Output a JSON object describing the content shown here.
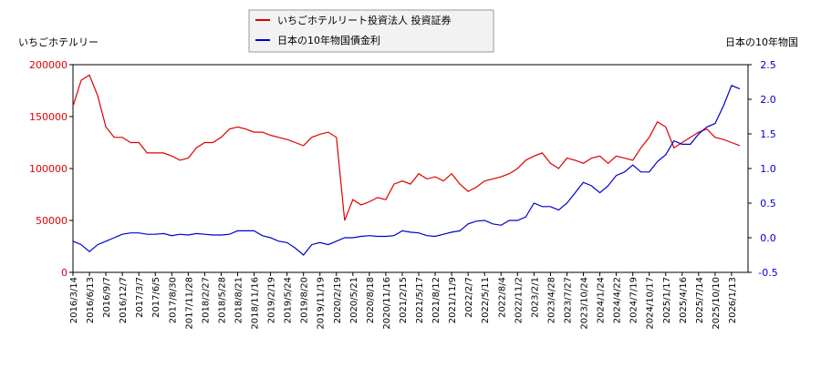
{
  "chart_data": {
    "type": "line",
    "y_label": "いちごホテルリー",
    "y2_label": "日本の10年物国",
    "categories": [
      "2016/3/14",
      null,
      "2016/6/13",
      null,
      "2016/9/7",
      null,
      "2016/12/7",
      null,
      "2017/3/7",
      null,
      "2017/6/5",
      null,
      "2017/8/30",
      null,
      "2017/11/28",
      null,
      "2018/2/27",
      null,
      "2018/5/28",
      null,
      "2018/8/21",
      null,
      "2018/11/16",
      null,
      "2019/2/19",
      null,
      "2019/5/24",
      null,
      "2019/8/20",
      null,
      "2019/11/19",
      null,
      "2020/2/19",
      null,
      "2020/5/21",
      null,
      "2020/8/18",
      null,
      "2020/11/16",
      null,
      "2021/2/15",
      null,
      "2021/5/17",
      null,
      "2021/8/12",
      null,
      "2021/11/9",
      null,
      "2022/2/7",
      null,
      "2022/5/11",
      null,
      "2022/8/4",
      null,
      "2022/11/2",
      null,
      "2023/2/1",
      null,
      "2023/4/28",
      null,
      "2023/7/27",
      null,
      "2023/10/24",
      null,
      "2024/1/24",
      null,
      "2024/4/22",
      null,
      "2024/7/19",
      null,
      "2024/10/17",
      null,
      "2025/1/17",
      null,
      "2025/4/16",
      null,
      "2025/7/14",
      null,
      "2025/10/10",
      null,
      "2026/1/13",
      null
    ],
    "series": [
      {
        "name": "いちごホテルリート投資法人 投資証券",
        "color": "#dd0000",
        "values": [
          160000,
          185000,
          190000,
          170000,
          140000,
          130000,
          130000,
          125000,
          125000,
          115000,
          115000,
          115000,
          112000,
          108000,
          110000,
          120000,
          125000,
          125000,
          130000,
          138000,
          140000,
          138000,
          135000,
          135000,
          132000,
          130000,
          128000,
          125000,
          122000,
          130000,
          133000,
          135000,
          130000,
          50000,
          70000,
          65000,
          68000,
          72000,
          70000,
          85000,
          88000,
          85000,
          95000,
          90000,
          92000,
          88000,
          95000,
          85000,
          78000,
          82000,
          88000,
          90000,
          92000,
          95000,
          100000,
          108000,
          112000,
          115000,
          105000,
          100000,
          110000,
          108000,
          105000,
          110000,
          112000,
          105000,
          112000,
          110000,
          108000,
          120000,
          130000,
          145000,
          140000,
          120000,
          125000,
          130000,
          135000,
          138000,
          130000,
          128000,
          125000,
          122000
        ]
      },
      {
        "name": "日本の10年物国債金利",
        "color": "#0000cc",
        "axis": "y2",
        "values": [
          -0.05,
          -0.1,
          -0.2,
          -0.1,
          -0.05,
          0.0,
          0.05,
          0.07,
          0.07,
          0.05,
          0.05,
          0.06,
          0.03,
          0.05,
          0.04,
          0.06,
          0.05,
          0.04,
          0.04,
          0.05,
          0.1,
          0.1,
          0.1,
          0.03,
          0.0,
          -0.05,
          -0.07,
          -0.15,
          -0.25,
          -0.1,
          -0.07,
          -0.1,
          -0.05,
          0.0,
          0.0,
          0.02,
          0.03,
          0.02,
          0.02,
          0.03,
          0.1,
          0.08,
          0.07,
          0.03,
          0.02,
          0.05,
          0.08,
          0.1,
          0.2,
          0.24,
          0.25,
          0.2,
          0.18,
          0.25,
          0.25,
          0.3,
          0.5,
          0.45,
          0.45,
          0.4,
          0.5,
          0.65,
          0.8,
          0.75,
          0.65,
          0.75,
          0.9,
          0.95,
          1.05,
          0.95,
          0.95,
          1.1,
          1.2,
          1.4,
          1.35,
          1.35,
          1.5,
          1.6,
          1.65,
          1.9,
          2.2,
          2.15
        ]
      }
    ],
    "ylim": [
      0,
      200000
    ],
    "yticks": [
      0,
      50000,
      100000,
      150000,
      200000
    ],
    "y2lim": [
      -0.5,
      2.5
    ],
    "y2ticks": [
      -0.5,
      {
        "value": 0,
        "label": "0.0"
      },
      0.5,
      {
        "value": 1,
        "label": "1.0"
      },
      1.5,
      {
        "value": 2,
        "label": "2.0"
      },
      2.5
    ],
    "legend": "top"
  }
}
